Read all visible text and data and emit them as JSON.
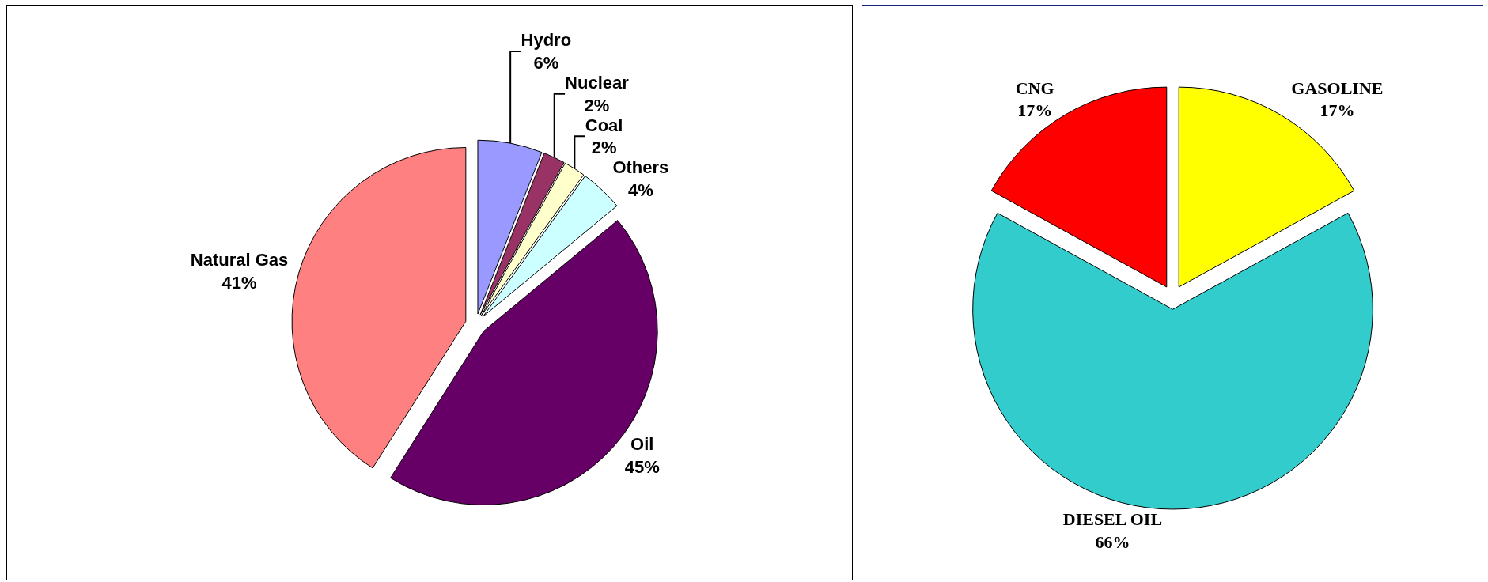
{
  "chart_data": [
    {
      "type": "pie",
      "categories": [
        "Hydro",
        "Nuclear",
        "Coal",
        "Others",
        "Oil",
        "Natural Gas"
      ],
      "values": [
        6,
        2,
        2,
        4,
        45,
        41
      ],
      "value_labels": [
        "6%",
        "2%",
        "2%",
        "4%",
        "45%",
        "41%"
      ],
      "colors": [
        "#9999ff",
        "#993366",
        "#ffffcc",
        "#ccffff",
        "#660066",
        "#ff8080"
      ],
      "legend": false
    },
    {
      "type": "pie",
      "categories": [
        "GASOLINE",
        "DIESEL OIL",
        "CNG"
      ],
      "values": [
        17,
        66,
        17
      ],
      "value_labels": [
        "17%",
        "66%",
        "17%"
      ],
      "colors": [
        "#ffff00",
        "#33cccc",
        "#ff0000"
      ],
      "legend": false
    }
  ]
}
